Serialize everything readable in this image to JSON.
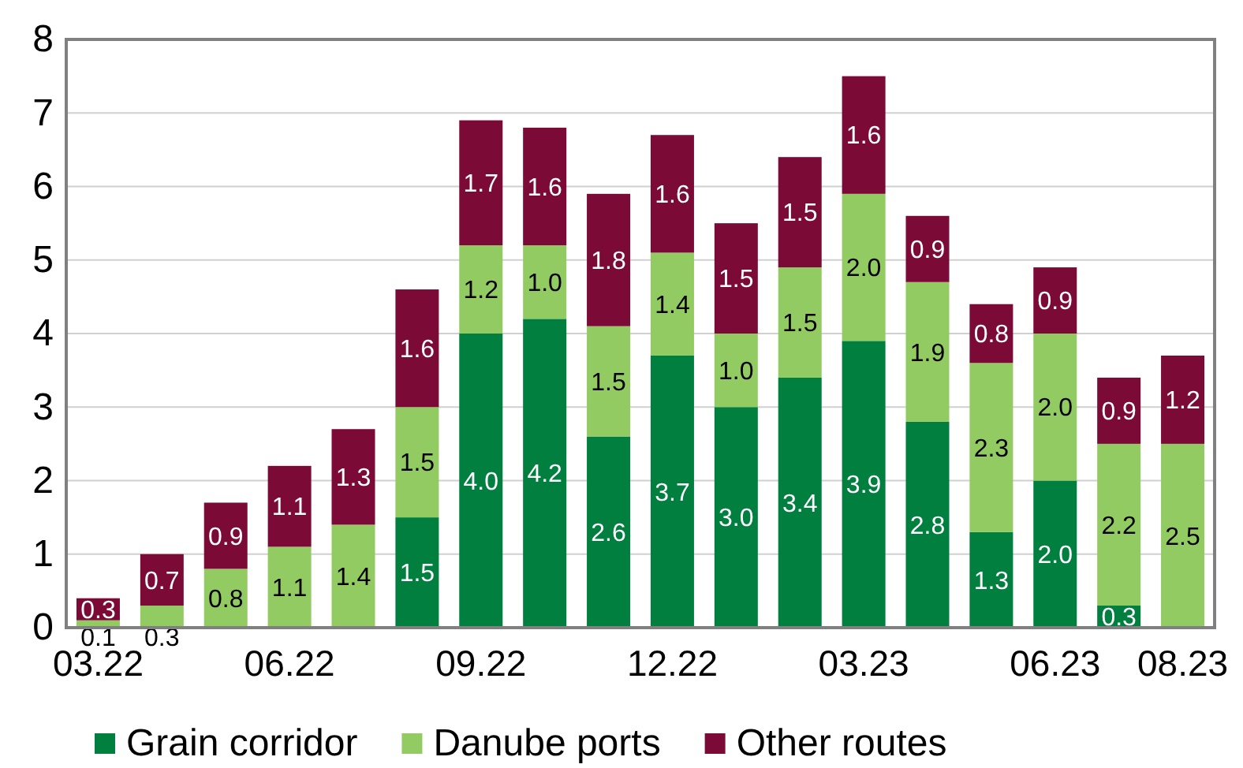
{
  "chart_data": {
    "type": "bar",
    "stacked": true,
    "categories": [
      "03.22",
      null,
      null,
      "06.22",
      null,
      null,
      "09.22",
      null,
      null,
      "12.22",
      null,
      null,
      "03.23",
      null,
      null,
      "06.23",
      null,
      "08.23"
    ],
    "series": [
      {
        "name": "Grain corridor",
        "color": "#007f3f",
        "values": [
          null,
          null,
          null,
          null,
          null,
          1.5,
          4.0,
          4.2,
          2.6,
          3.7,
          3.0,
          3.4,
          3.9,
          2.8,
          1.3,
          2.0,
          0.3,
          null
        ],
        "value_labels": [
          null,
          null,
          null,
          null,
          null,
          "1.5",
          "4.0",
          "4.2",
          "2.6",
          "3.7",
          "3.0",
          "3.4",
          "3.9",
          "2.8",
          "1.3",
          "2.0",
          "0.3",
          null
        ]
      },
      {
        "name": "Danube ports",
        "color": "#92cb62",
        "values": [
          0.1,
          0.3,
          0.8,
          1.1,
          1.4,
          1.5,
          1.2,
          1.0,
          1.5,
          1.4,
          1.0,
          1.5,
          2.0,
          1.9,
          2.3,
          2.0,
          2.2,
          2.5
        ],
        "value_labels": [
          "0.1",
          "0.3",
          "0.8",
          "1.1",
          "1.4",
          "1.5",
          "1.2",
          "1.0",
          "1.5",
          "1.4",
          "1.0",
          "1.5",
          "2.0",
          "1.9",
          "2.3",
          "2.0",
          "2.2",
          "2.5"
        ]
      },
      {
        "name": "Other routes",
        "color": "#7b0a37",
        "values": [
          0.3,
          0.7,
          0.9,
          1.1,
          1.3,
          1.6,
          1.7,
          1.6,
          1.8,
          1.6,
          1.5,
          1.5,
          1.6,
          0.9,
          0.8,
          0.9,
          0.9,
          1.2
        ],
        "value_labels": [
          "0.3",
          "0.7",
          "0.9",
          "1.1",
          "1.3",
          "1.6",
          "1.7",
          "1.6",
          "1.8",
          "1.6",
          "1.5",
          "1.5",
          "1.6",
          "0.9",
          "0.8",
          "0.9",
          "0.9",
          "1.2"
        ]
      }
    ],
    "ylim": [
      0,
      8
    ],
    "yticks": [
      0,
      1,
      2,
      3,
      4,
      5,
      6,
      7,
      8
    ],
    "grid": "y",
    "legend": "bottom"
  }
}
